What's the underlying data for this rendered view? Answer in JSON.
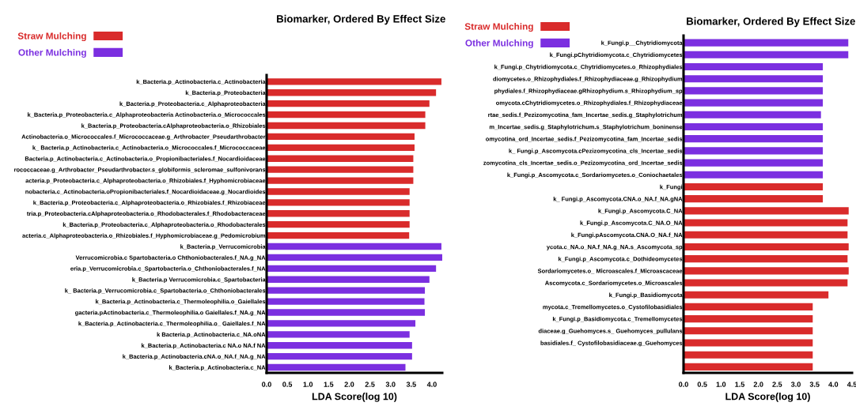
{
  "chart_data": [
    {
      "type": "bar",
      "orientation": "horizontal",
      "title": "Biomarker, Ordered By Effect Size",
      "xlabel": "LDA Score(log 10)",
      "legend": "top left",
      "categories": [
        "k_Bacteria.p_Actinobacteria.c_Actinobacteria",
        "k_Bacteria.p_Proteobacteria",
        "k_Bacteria.p_Proteobacteria.c_Alphaproteobacteria",
        "k_Bacteria.p_Proteobacteria.c_Alphaproteobacteria Actinobacteria.o_Micrococcales",
        "k_Bacteria.p_Proteobacteria.cAlphaproteobacteria.o_Rhizobiales",
        "Actinobacteria.o_Micrococcales.f_Micrococcaceae.g_Arthrobacter_Pseudarthrobacter",
        "k_ Bacteria.p_Actinobacteria.c_Actinobacteria.o_Micrococcales.f_Micrococcaceae",
        "Bacteria.p_Actinobacteria.c_Actinobacteria.o_Propionibacteriales.f_Nocardioidaceae",
        "rococcaceae.g_Arthrobacter_Pseudarthrobacter.s_globiformis_scleromae_sulfonivorans",
        "acteria.p_Proteobacteria.c_Alphaproteobacteria.o_Rhizobiales.f_Hyphomicrobiaceae",
        "nobacteria.c_Actinobacteria.oPropionibacteriales.f_Nocardioidaceae.g_Nocardioides",
        "k_Bacteria.p_Proteobacteria.c_Alphaproteobacteria.o_Rhizobiales.f_Rhizobiaceae",
        "tria.p_Proteobacteria.cAlphaproteobacteria.o_Rhodobacterales.f_Rhodobacteraceae",
        "k_Bacteria.p_Proteobacteria.c_Alphaproteobacteria.o_Rhodobacterales",
        "acteria.c_Alphaproteobacteria.o_Rhizobiales.f_Hyphomicrobiaceae.g_Pedomicrobium",
        "k_Bacteria.p_Verrucomicrobia",
        "Verrucomicrobia.c Spartobacteria.o Chthoniobacterales.f_NA.g_NA",
        "eria.p_Verrucomicrobia.c_Spartobacteria.o_Chthoniobacterales.f_NA",
        "k_Bacteria.p Verrucomicrobia.c_Spartobacteria",
        "k_ Bacteria.p_Verrucomicrobia.c_Spartobacteria.o_Chthoniobacterales",
        "k_Bacteria.p_Actinobacteria.c_Thermoleophilia.o_Gaiellales",
        "gacteria.pActinobacteria.c_Thermoleophilia.o Gaiellales.f_NA.g_NA",
        "k_Bacteria.p_Actinobacteria.c_Thermoleophilia.o_ Gaiellales.f_NA",
        "k Bacteria.p_Actinobacteria.c_NA.oNA",
        "k_Bacteria.p_Actinobacteria.c NA.o NA.f NA",
        "k_Bacteria.p_Actinobacteria.cNA.o_NA.f_NA.g_NA",
        "k_Bacteria.p_Actinobacteria.c_NA"
      ],
      "series": [
        {
          "name": "Straw Mulching",
          "color": "#d92b2b",
          "values": [
            4.23,
            4.1,
            3.94,
            3.84,
            3.84,
            3.58,
            3.58,
            3.55,
            3.55,
            3.55,
            3.46,
            3.46,
            3.46,
            3.46,
            3.45,
            null,
            null,
            null,
            null,
            null,
            null,
            null,
            null,
            null,
            null,
            null,
            null
          ]
        },
        {
          "name": "Other Mulching",
          "color": "#7b2fe0",
          "values": [
            null,
            null,
            null,
            null,
            null,
            null,
            null,
            null,
            null,
            null,
            null,
            null,
            null,
            null,
            null,
            4.23,
            4.25,
            4.1,
            3.94,
            3.83,
            3.82,
            3.83,
            3.6,
            3.46,
            3.52,
            3.52,
            3.36
          ]
        }
      ],
      "xlim": [
        0,
        4.25
      ],
      "xticks": [
        {
          "value": 0,
          "label": "0.0"
        },
        {
          "value": 0.5,
          "label": "0.5"
        },
        {
          "value": 1,
          "label": "1.0"
        },
        {
          "value": 1.5,
          "label": "1.5"
        },
        {
          "value": 2,
          "label": "2.0"
        },
        {
          "value": 2.5,
          "label": "2.5"
        },
        {
          "value": 3,
          "label": "3.0"
        },
        {
          "value": 3.5,
          "label": "3.5"
        },
        {
          "value": 4,
          "label": "4.0"
        }
      ]
    },
    {
      "type": "bar",
      "orientation": "horizontal",
      "title": "Biomarker, Ordered By Effect Size",
      "xlabel": "LDA Score(log 10)",
      "legend": "top left",
      "categories": [
        "k_Fungi.p__Chytridiomycota",
        "k_Fungi.pChytridiomycota.c_Chytridiomycetes",
        "k_Fungi.p_Chytridiomycota.c_Chytridiomycetes.o_Rhizophydiales",
        "diomycetes.o_Rhizophydiales.f_Rhizophydiaceae.g_Rhizophydium",
        "phydiales.f_Rhizophydiaceae.gRhizophydium.s_Rhizophydium_sp",
        "omycota.cChytridiomycetes.o_Rhizophydiales.f_Rhizophydiaceae",
        "rtae_sedis.f_Pezizomycotina_fam_Incertae_sedis.g_Staphylotrichum",
        "m_Incertae_sedis.g_Staphylotrichum.s_Staphylotrichum_boninense",
        "omycotina_ord_Incertae_sedis.f_Pezizomycotina_fam_Incertae_sedis",
        "k_ Fungi.p_Ascomycota.cPezizomycotina_cls_Incertae_sedis",
        "zomycotina_cls_Incertae_sedis.o_Pezizomycotina_ord_Incertae_sedis",
        "k_Fungi.p_Ascomycota.c_Sordariomycetes.o_Coniochaetales",
        "k_Fungi",
        "k_ Fungi.p_Ascomycota.CNA.o_NA.f_NA.gNA",
        "k_Fungi.p_Ascomycota.C_NA",
        "k_Fungi.p_Ascomycota.C_NA.O_NA",
        "k_Fungi.pAscomycota.CNA.O_NA.f_NA",
        "ycota.c_NA.o_NA.f_NA.g_NA.s_Ascomycota_sp",
        "k_Fungi.p_Ascomycota.c_Dothideomycetes",
        "Sordariomycetes.o_ Microascales.f_Microascaceae",
        "Ascomycota.c_Sordariomycetes.o_Microascales",
        "k_Fungi.p_Basidiomycota",
        "mycota.c_Tremellomycetes.o_Cystofilobasidiales",
        "k_Fungi.p_Basidiomycota.c_Tremellomycetes",
        "diaceae.g_Guehomyces.s_ Guehomyces_pullulans",
        "basidiales.f_ Cystofilobasidiaceae.g_Guehomyces",
        null,
        null
      ],
      "series": [
        {
          "name": "Straw Mulching",
          "color": "#d92b2b",
          "values": [
            null,
            null,
            null,
            null,
            null,
            null,
            null,
            null,
            null,
            null,
            null,
            null,
            3.72,
            3.72,
            4.41,
            4.38,
            4.38,
            4.41,
            4.38,
            4.41,
            4.38,
            3.87,
            3.45,
            3.45,
            3.45,
            3.45,
            3.45,
            3.45
          ]
        },
        {
          "name": "Other Mulching",
          "color": "#7b2fe0",
          "values": [
            4.4,
            4.4,
            3.72,
            3.72,
            3.72,
            3.72,
            3.67,
            3.72,
            3.72,
            3.72,
            3.72,
            3.72,
            null,
            null,
            null,
            null,
            null,
            null,
            null,
            null,
            null,
            null,
            null,
            null,
            null,
            null,
            null,
            null
          ]
        }
      ],
      "xlim": [
        0,
        4.5
      ],
      "xticks": [
        {
          "value": 0,
          "label": "0.0"
        },
        {
          "value": 0.5,
          "label": "0.5"
        },
        {
          "value": 1,
          "label": "1.0"
        },
        {
          "value": 1.5,
          "label": "1.5"
        },
        {
          "value": 2,
          "label": "2.0"
        },
        {
          "value": 2.5,
          "label": "2.5"
        },
        {
          "value": 3,
          "label": "3.0"
        },
        {
          "value": 3.5,
          "label": "3.5"
        },
        {
          "value": 4,
          "label": "4.0"
        },
        {
          "value": 4.5,
          "label": "4.5"
        }
      ]
    }
  ]
}
